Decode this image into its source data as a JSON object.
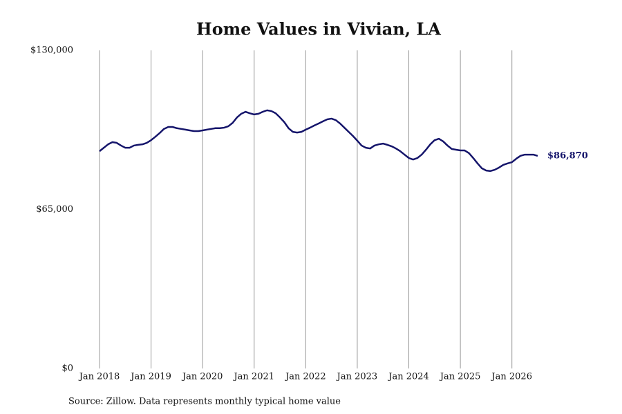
{
  "chart_data": {
    "type": "line",
    "title": "Home Values in Vivian, LA",
    "source": "Source: Zillow. Data represents monthly typical home value",
    "x": [
      "2018-01",
      "2018-02",
      "2018-03",
      "2018-04",
      "2018-05",
      "2018-06",
      "2018-07",
      "2018-08",
      "2018-09",
      "2018-10",
      "2018-11",
      "2018-12",
      "2019-01",
      "2019-02",
      "2019-03",
      "2019-04",
      "2019-05",
      "2019-06",
      "2019-07",
      "2019-08",
      "2019-09",
      "2019-10",
      "2019-11",
      "2019-12",
      "2020-01",
      "2020-02",
      "2020-03",
      "2020-04",
      "2020-05",
      "2020-06",
      "2020-07",
      "2020-08",
      "2020-09",
      "2020-10",
      "2020-11",
      "2020-12",
      "2021-01",
      "2021-02",
      "2021-03",
      "2021-04",
      "2021-05",
      "2021-06",
      "2021-07",
      "2021-08",
      "2021-09",
      "2021-10",
      "2021-11",
      "2021-12",
      "2022-01",
      "2022-02",
      "2022-03",
      "2022-04",
      "2022-05",
      "2022-06",
      "2022-07",
      "2022-08",
      "2022-09",
      "2022-10",
      "2022-11",
      "2022-12",
      "2023-01",
      "2023-02",
      "2023-03",
      "2023-04",
      "2023-05",
      "2023-06",
      "2023-07",
      "2023-08",
      "2023-09",
      "2023-10",
      "2023-11",
      "2023-12",
      "2024-01",
      "2024-02",
      "2024-03",
      "2024-04",
      "2024-05",
      "2024-06",
      "2024-07",
      "2024-08",
      "2024-09",
      "2024-10",
      "2024-11",
      "2024-12",
      "2025-01",
      "2025-02",
      "2025-03",
      "2025-04",
      "2025-05",
      "2025-06",
      "2025-07",
      "2025-08",
      "2025-09",
      "2025-10",
      "2025-11",
      "2025-12",
      "2026-01",
      "2026-02",
      "2026-03",
      "2026-04",
      "2026-05",
      "2026-06",
      "2026-07"
    ],
    "series": [
      {
        "name": "Vivian, LA",
        "color": "#15156b",
        "values": [
          88800,
          90200,
          91600,
          92500,
          92200,
          91100,
          90200,
          90200,
          91100,
          91400,
          91600,
          92200,
          93300,
          94700,
          96200,
          97900,
          98700,
          98700,
          98200,
          97900,
          97600,
          97300,
          97000,
          97000,
          97300,
          97600,
          97900,
          98200,
          98200,
          98400,
          99000,
          100400,
          102600,
          104100,
          104900,
          104300,
          103800,
          104100,
          104900,
          105500,
          105200,
          104300,
          102600,
          100700,
          98200,
          96700,
          96400,
          96700,
          97600,
          98400,
          99300,
          100100,
          101000,
          101800,
          102100,
          101500,
          100100,
          98400,
          96700,
          95000,
          93100,
          91100,
          90200,
          89900,
          91100,
          91600,
          91900,
          91400,
          90800,
          89900,
          88800,
          87400,
          86000,
          85400,
          86000,
          87400,
          89400,
          91600,
          93300,
          93900,
          92800,
          91100,
          89700,
          89400,
          89100,
          89100,
          88000,
          86000,
          83800,
          81800,
          80900,
          80700,
          81200,
          82100,
          83200,
          83800,
          84300,
          85700,
          86900,
          87400,
          87400,
          87400,
          86870
        ],
        "value_labels": [
          null,
          null,
          null,
          null,
          null,
          null,
          null,
          null,
          null,
          null,
          null,
          null,
          null,
          null,
          null,
          null,
          null,
          null,
          null,
          null,
          null,
          null,
          null,
          null,
          null,
          null,
          null,
          null,
          null,
          null,
          null,
          null,
          null,
          null,
          null,
          null,
          null,
          null,
          null,
          null,
          null,
          null,
          null,
          null,
          null,
          null,
          null,
          null,
          null,
          null,
          null,
          null,
          null,
          null,
          null,
          null,
          null,
          null,
          null,
          null,
          null,
          null,
          null,
          null,
          null,
          null,
          null,
          null,
          null,
          null,
          null,
          null,
          null,
          null,
          null,
          null,
          null,
          null,
          null,
          null,
          null,
          null,
          null,
          null,
          null,
          null,
          null,
          null,
          null,
          null,
          null,
          null,
          null,
          null,
          null,
          null,
          null,
          null,
          null,
          null,
          null,
          null,
          "$86,870"
        ]
      }
    ],
    "xlim": [
      "2018-01",
      "2026-07"
    ],
    "xticks": [
      {
        "value": "2018-01",
        "label": "Jan 2018"
      },
      {
        "value": "2019-01",
        "label": "Jan 2019"
      },
      {
        "value": "2020-01",
        "label": "Jan 2020"
      },
      {
        "value": "2021-01",
        "label": "Jan 2021"
      },
      {
        "value": "2022-01",
        "label": "Jan 2022"
      },
      {
        "value": "2023-01",
        "label": "Jan 2023"
      },
      {
        "value": "2024-01",
        "label": "Jan 2024"
      },
      {
        "value": "2025-01",
        "label": "Jan 2025"
      },
      {
        "value": "2026-01",
        "label": "Jan 2026"
      }
    ],
    "ylim": [
      0,
      130000
    ],
    "yticks": [
      {
        "value": 0,
        "label": "$0"
      },
      {
        "value": 65000,
        "label": "$65,000"
      },
      {
        "value": 130000,
        "label": "$130,000"
      }
    ],
    "grid": "x"
  }
}
